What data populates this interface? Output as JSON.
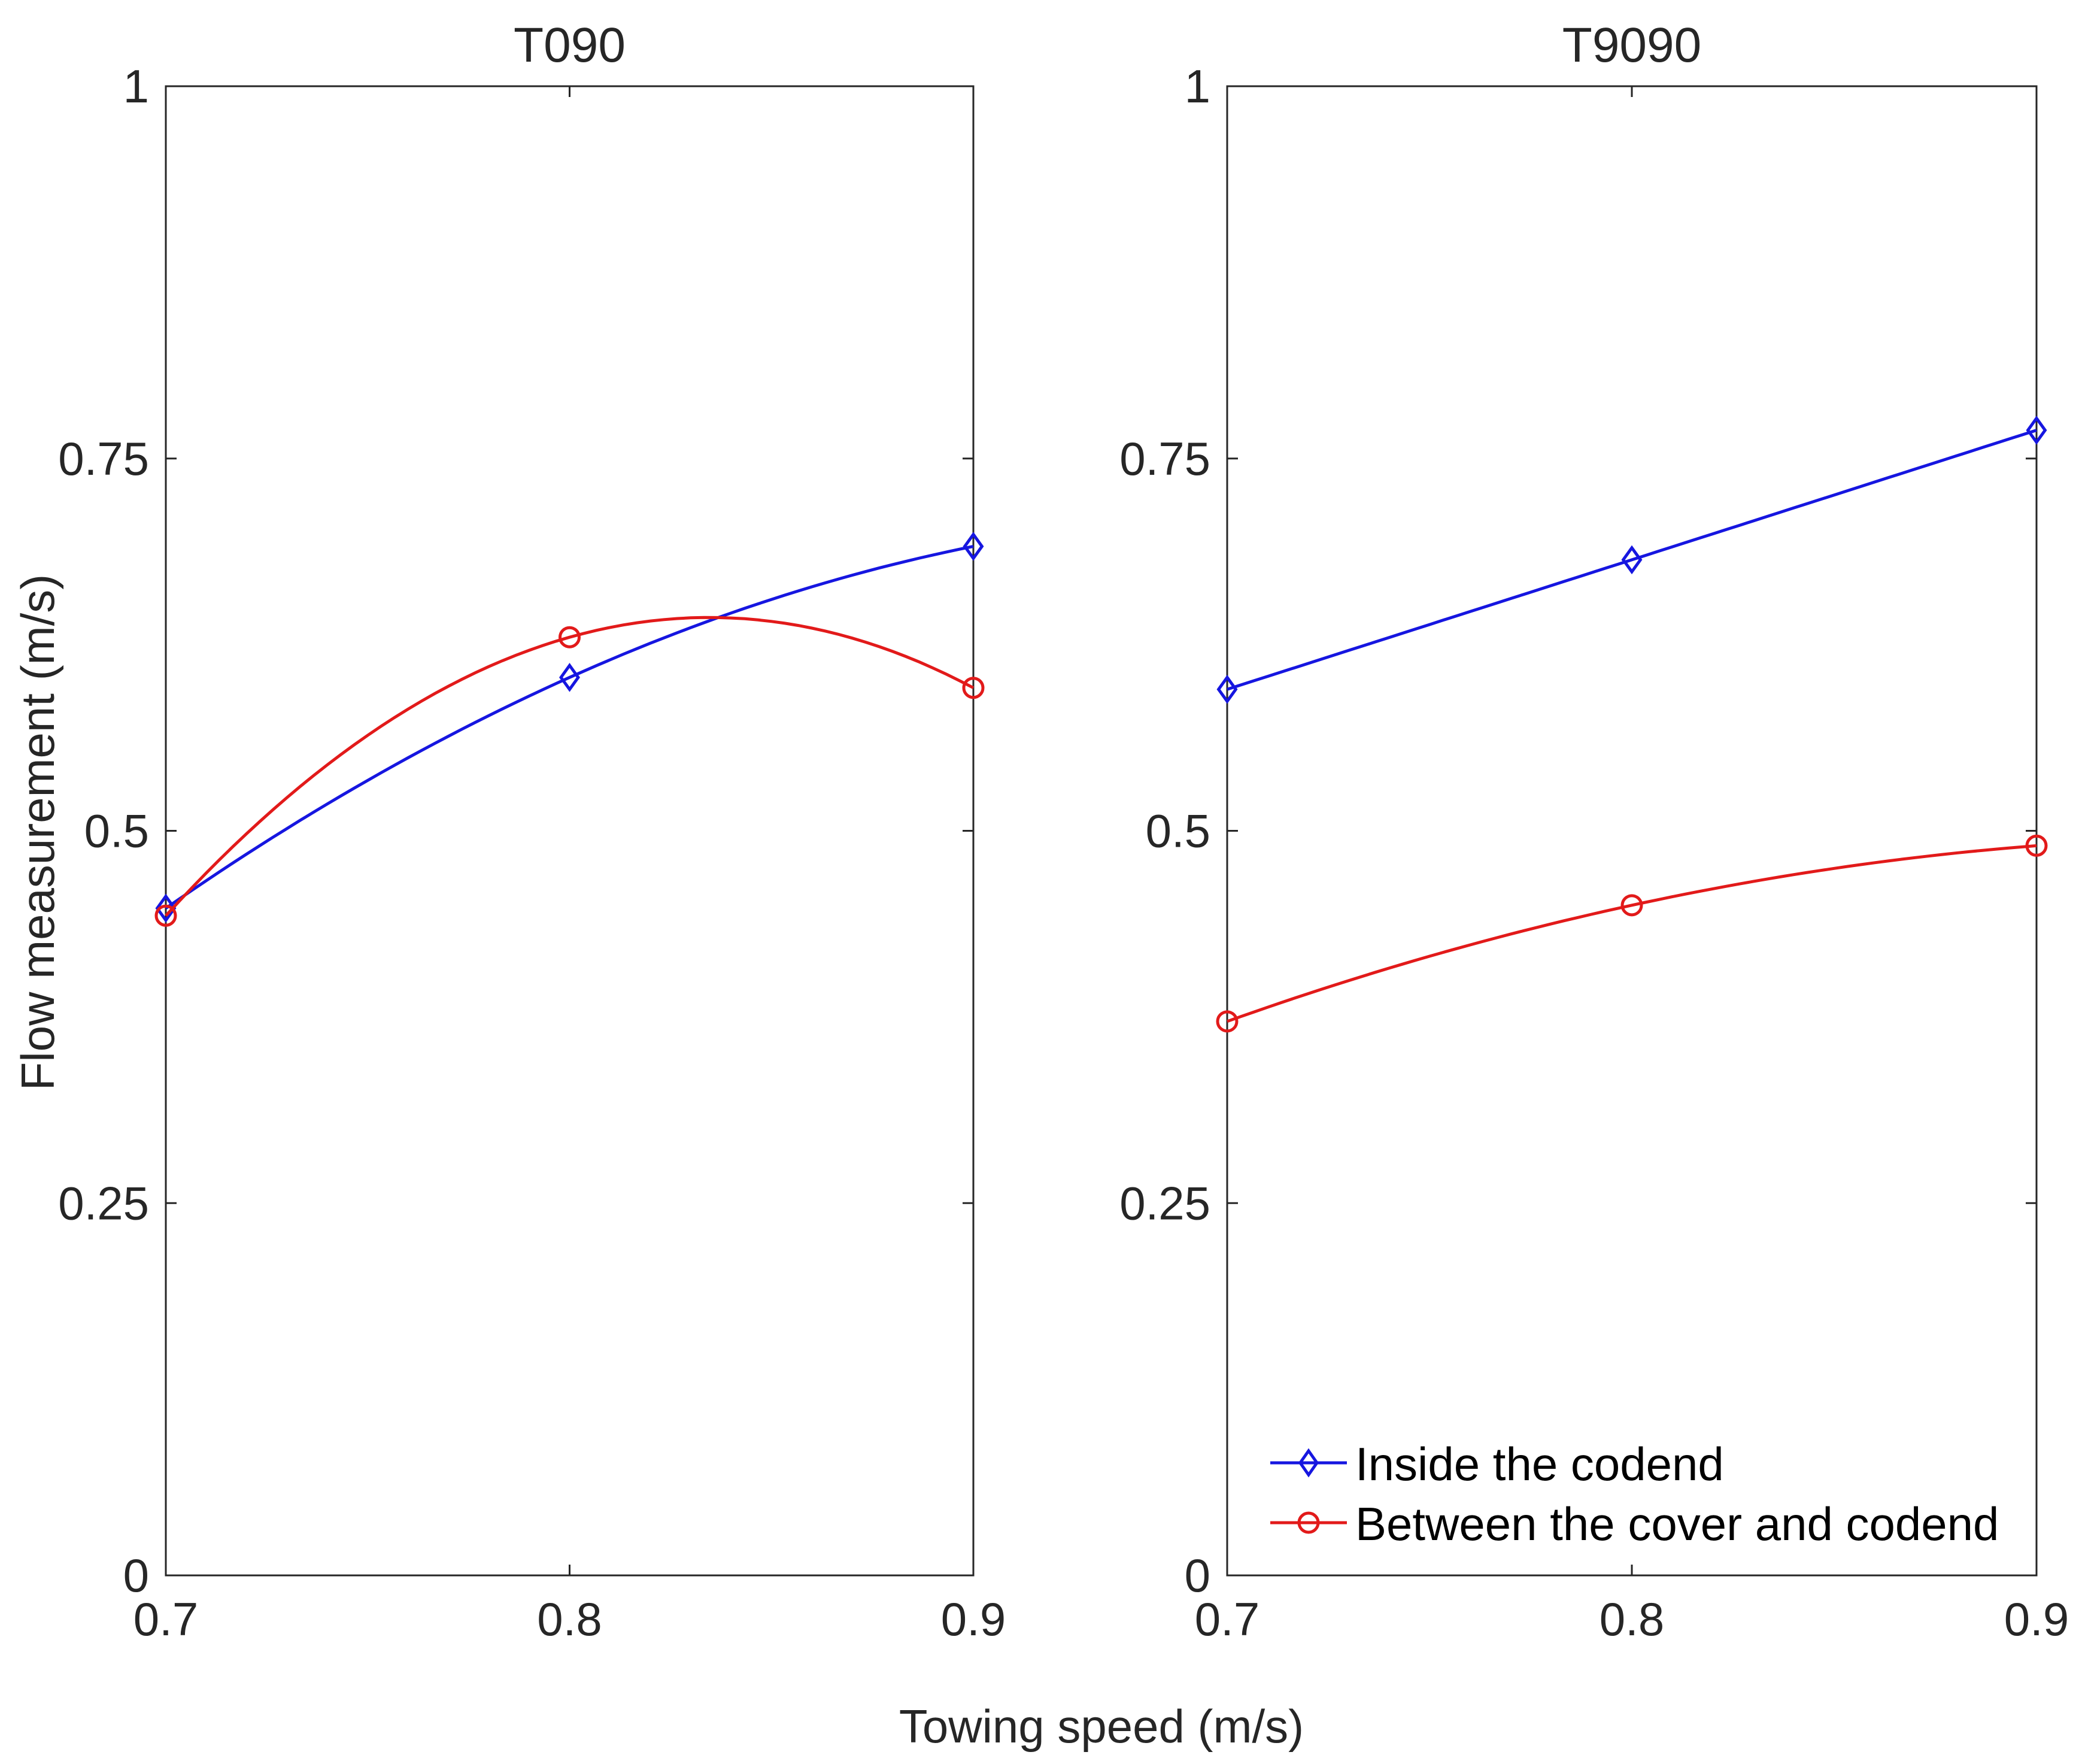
{
  "chart_data": {
    "type": "line",
    "xlabel": "Towing speed (m/s)",
    "ylabel": "Flow measurement (m/s)",
    "xlim": [
      0.7,
      0.9
    ],
    "ylim": [
      0,
      1
    ],
    "x_ticks": [
      "0.7",
      "0.8",
      "0.9"
    ],
    "y_ticks": [
      "0",
      "0.25",
      "0.5",
      "0.75",
      "1"
    ],
    "colors": {
      "inside": "#1616e0",
      "between": "#e21a1a",
      "axis": "#262626"
    },
    "legend": {
      "placement": "bottom-right of second panel",
      "entries": [
        "Inside the codend",
        "Between the cover and codend"
      ]
    },
    "panels": [
      {
        "title": "T090",
        "series": [
          {
            "name": "Inside the codend",
            "marker": "diamond",
            "x": [
              0.7,
              0.8,
              0.9
            ],
            "values": [
              0.448,
              0.603,
              0.691
            ]
          },
          {
            "name": "Between the cover and codend",
            "marker": "circle",
            "x": [
              0.7,
              0.8,
              0.9
            ],
            "values": [
              0.443,
              0.63,
              0.596
            ]
          }
        ]
      },
      {
        "title": "T9090",
        "series": [
          {
            "name": "Inside the codend",
            "marker": "diamond",
            "x": [
              0.7,
              0.8,
              0.9
            ],
            "values": [
              0.595,
              0.682,
              0.769
            ]
          },
          {
            "name": "Between the cover and codend",
            "marker": "circle",
            "x": [
              0.7,
              0.8,
              0.9
            ],
            "values": [
              0.372,
              0.45,
              0.49
            ]
          }
        ]
      }
    ]
  }
}
